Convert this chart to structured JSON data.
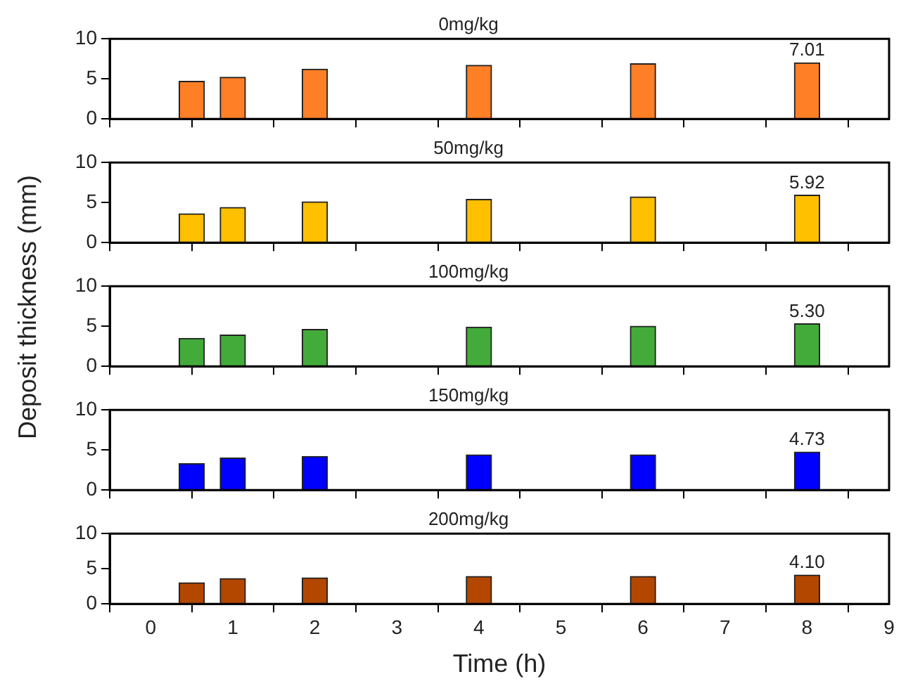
{
  "chart_data": [
    {
      "type": "bar",
      "title": "0mg/kg",
      "x": [
        0.5,
        1,
        2,
        4,
        6,
        8
      ],
      "series": [
        {
          "color": "#ff7f27",
          "values": [
            4.7,
            5.2,
            6.2,
            6.7,
            6.9,
            7.01
          ],
          "value_labels": [
            null,
            null,
            null,
            null,
            null,
            "7.01"
          ]
        }
      ],
      "xlim": [
        -0.5,
        9
      ],
      "xticks": [
        0,
        1,
        2,
        3,
        4,
        5,
        6,
        7,
        8,
        9
      ],
      "ylim": [
        0,
        10
      ],
      "yticks": [
        0,
        5,
        10
      ],
      "grid": false,
      "legend": false,
      "tick_labels": "y"
    },
    {
      "type": "bar",
      "title": "50mg/kg",
      "x": [
        0.5,
        1,
        2,
        4,
        6,
        8
      ],
      "series": [
        {
          "color": "#ffc000",
          "values": [
            3.6,
            4.4,
            5.1,
            5.4,
            5.7,
            5.92
          ],
          "value_labels": [
            null,
            null,
            null,
            null,
            null,
            "5.92"
          ]
        }
      ],
      "xlim": [
        -0.5,
        9
      ],
      "xticks": [
        0,
        1,
        2,
        3,
        4,
        5,
        6,
        7,
        8,
        9
      ],
      "ylim": [
        0,
        10
      ],
      "yticks": [
        0,
        5,
        10
      ],
      "grid": false,
      "legend": false,
      "tick_labels": "y"
    },
    {
      "type": "bar",
      "title": "100mg/kg",
      "ylabel": "Deposit thickness (mm)",
      "x": [
        0.5,
        1,
        2,
        4,
        6,
        8
      ],
      "series": [
        {
          "color": "#43ab3a",
          "values": [
            3.5,
            3.9,
            4.6,
            4.9,
            5.0,
            5.3
          ],
          "value_labels": [
            null,
            null,
            null,
            null,
            null,
            "5.30"
          ]
        }
      ],
      "xlim": [
        -0.5,
        9
      ],
      "xticks": [
        0,
        1,
        2,
        3,
        4,
        5,
        6,
        7,
        8,
        9
      ],
      "ylim": [
        0,
        10
      ],
      "yticks": [
        0,
        5,
        10
      ],
      "grid": false,
      "legend": false,
      "tick_labels": "y"
    },
    {
      "type": "bar",
      "title": "150mg/kg",
      "x": [
        0.5,
        1,
        2,
        4,
        6,
        8
      ],
      "series": [
        {
          "color": "#0000ff",
          "values": [
            3.3,
            4.0,
            4.2,
            4.4,
            4.4,
            4.73
          ],
          "value_labels": [
            null,
            null,
            null,
            null,
            null,
            "4.73"
          ]
        }
      ],
      "xlim": [
        -0.5,
        9
      ],
      "xticks": [
        0,
        1,
        2,
        3,
        4,
        5,
        6,
        7,
        8,
        9
      ],
      "ylim": [
        0,
        10
      ],
      "yticks": [
        0,
        5,
        10
      ],
      "grid": false,
      "legend": false,
      "tick_labels": "y"
    },
    {
      "type": "bar",
      "title": "200mg/kg",
      "xlabel": "Time (h)",
      "x": [
        0.5,
        1,
        2,
        4,
        6,
        8
      ],
      "series": [
        {
          "color": "#b34700",
          "values": [
            3.0,
            3.6,
            3.7,
            3.9,
            3.9,
            4.1
          ],
          "value_labels": [
            null,
            null,
            null,
            null,
            null,
            "4.10"
          ]
        }
      ],
      "xlim": [
        -0.5,
        9
      ],
      "xticks": [
        0,
        1,
        2,
        3,
        4,
        5,
        6,
        7,
        8,
        9
      ],
      "ylim": [
        0,
        10
      ],
      "yticks": [
        0,
        5,
        10
      ],
      "grid": false,
      "legend": false
    }
  ]
}
